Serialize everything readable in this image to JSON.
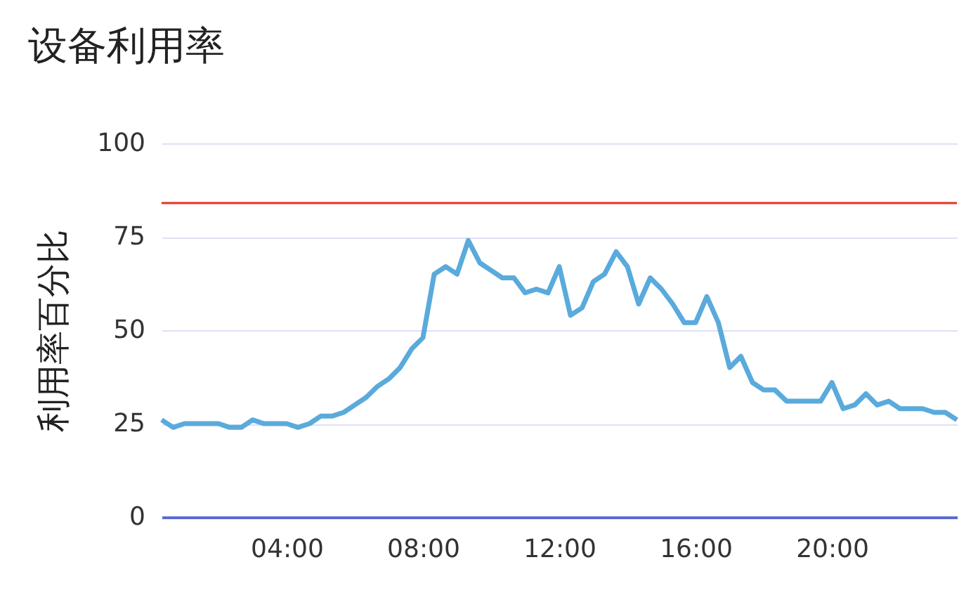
{
  "chart_data": {
    "type": "line",
    "title": "设备利用率",
    "ylabel": "利用率百分比",
    "x": [
      0.33,
      0.67,
      1,
      1.33,
      1.67,
      2,
      2.33,
      2.67,
      3,
      3.33,
      3.67,
      4,
      4.33,
      4.67,
      5,
      5.33,
      5.67,
      6,
      6.33,
      6.67,
      7,
      7.33,
      7.67,
      8,
      8.33,
      8.67,
      9,
      9.33,
      9.67,
      10,
      10.33,
      10.67,
      11,
      11.33,
      11.67,
      12,
      12.33,
      12.67,
      13,
      13.33,
      13.67,
      14,
      14.33,
      14.67,
      15,
      15.33,
      15.67,
      16,
      16.33,
      16.67,
      17,
      17.33,
      17.67,
      18,
      18.33,
      18.67,
      19,
      19.33,
      19.67,
      20,
      20.33,
      20.67,
      21,
      21.33,
      21.67,
      22,
      22.33,
      22.67,
      23,
      23.33,
      23.67
    ],
    "series": [
      {
        "color": "#5aaadc",
        "values": [
          26,
          24,
          25,
          25,
          25,
          25,
          24,
          24,
          26,
          25,
          25,
          25,
          24,
          25,
          27,
          27,
          28,
          30,
          32,
          35,
          37,
          40,
          45,
          48,
          65,
          67,
          65,
          74,
          68,
          66,
          64,
          64,
          60,
          61,
          60,
          67,
          54,
          56,
          63,
          65,
          71,
          67,
          57,
          64,
          61,
          57,
          52,
          52,
          59,
          52,
          40,
          43,
          36,
          34,
          34,
          31,
          31,
          31,
          31,
          36,
          29,
          30,
          33,
          30,
          31,
          29,
          29,
          29,
          28,
          28,
          26
        ]
      }
    ],
    "xlim": [
      0.33,
      23.67
    ],
    "xticks": [
      {
        "value": 4,
        "label": "04:00"
      },
      {
        "value": 8,
        "label": "08:00"
      },
      {
        "value": 12,
        "label": "12:00"
      },
      {
        "value": 16,
        "label": "16:00"
      },
      {
        "value": 20,
        "label": "20:00"
      }
    ],
    "ylim": [
      0,
      100
    ],
    "yticks": [
      0,
      25,
      50,
      75,
      100
    ],
    "ref_lines": [
      {
        "axis": "y",
        "value": 84,
        "color": "#e8302a"
      }
    ],
    "grid": "y",
    "marker": "none",
    "line_style": "solid"
  }
}
